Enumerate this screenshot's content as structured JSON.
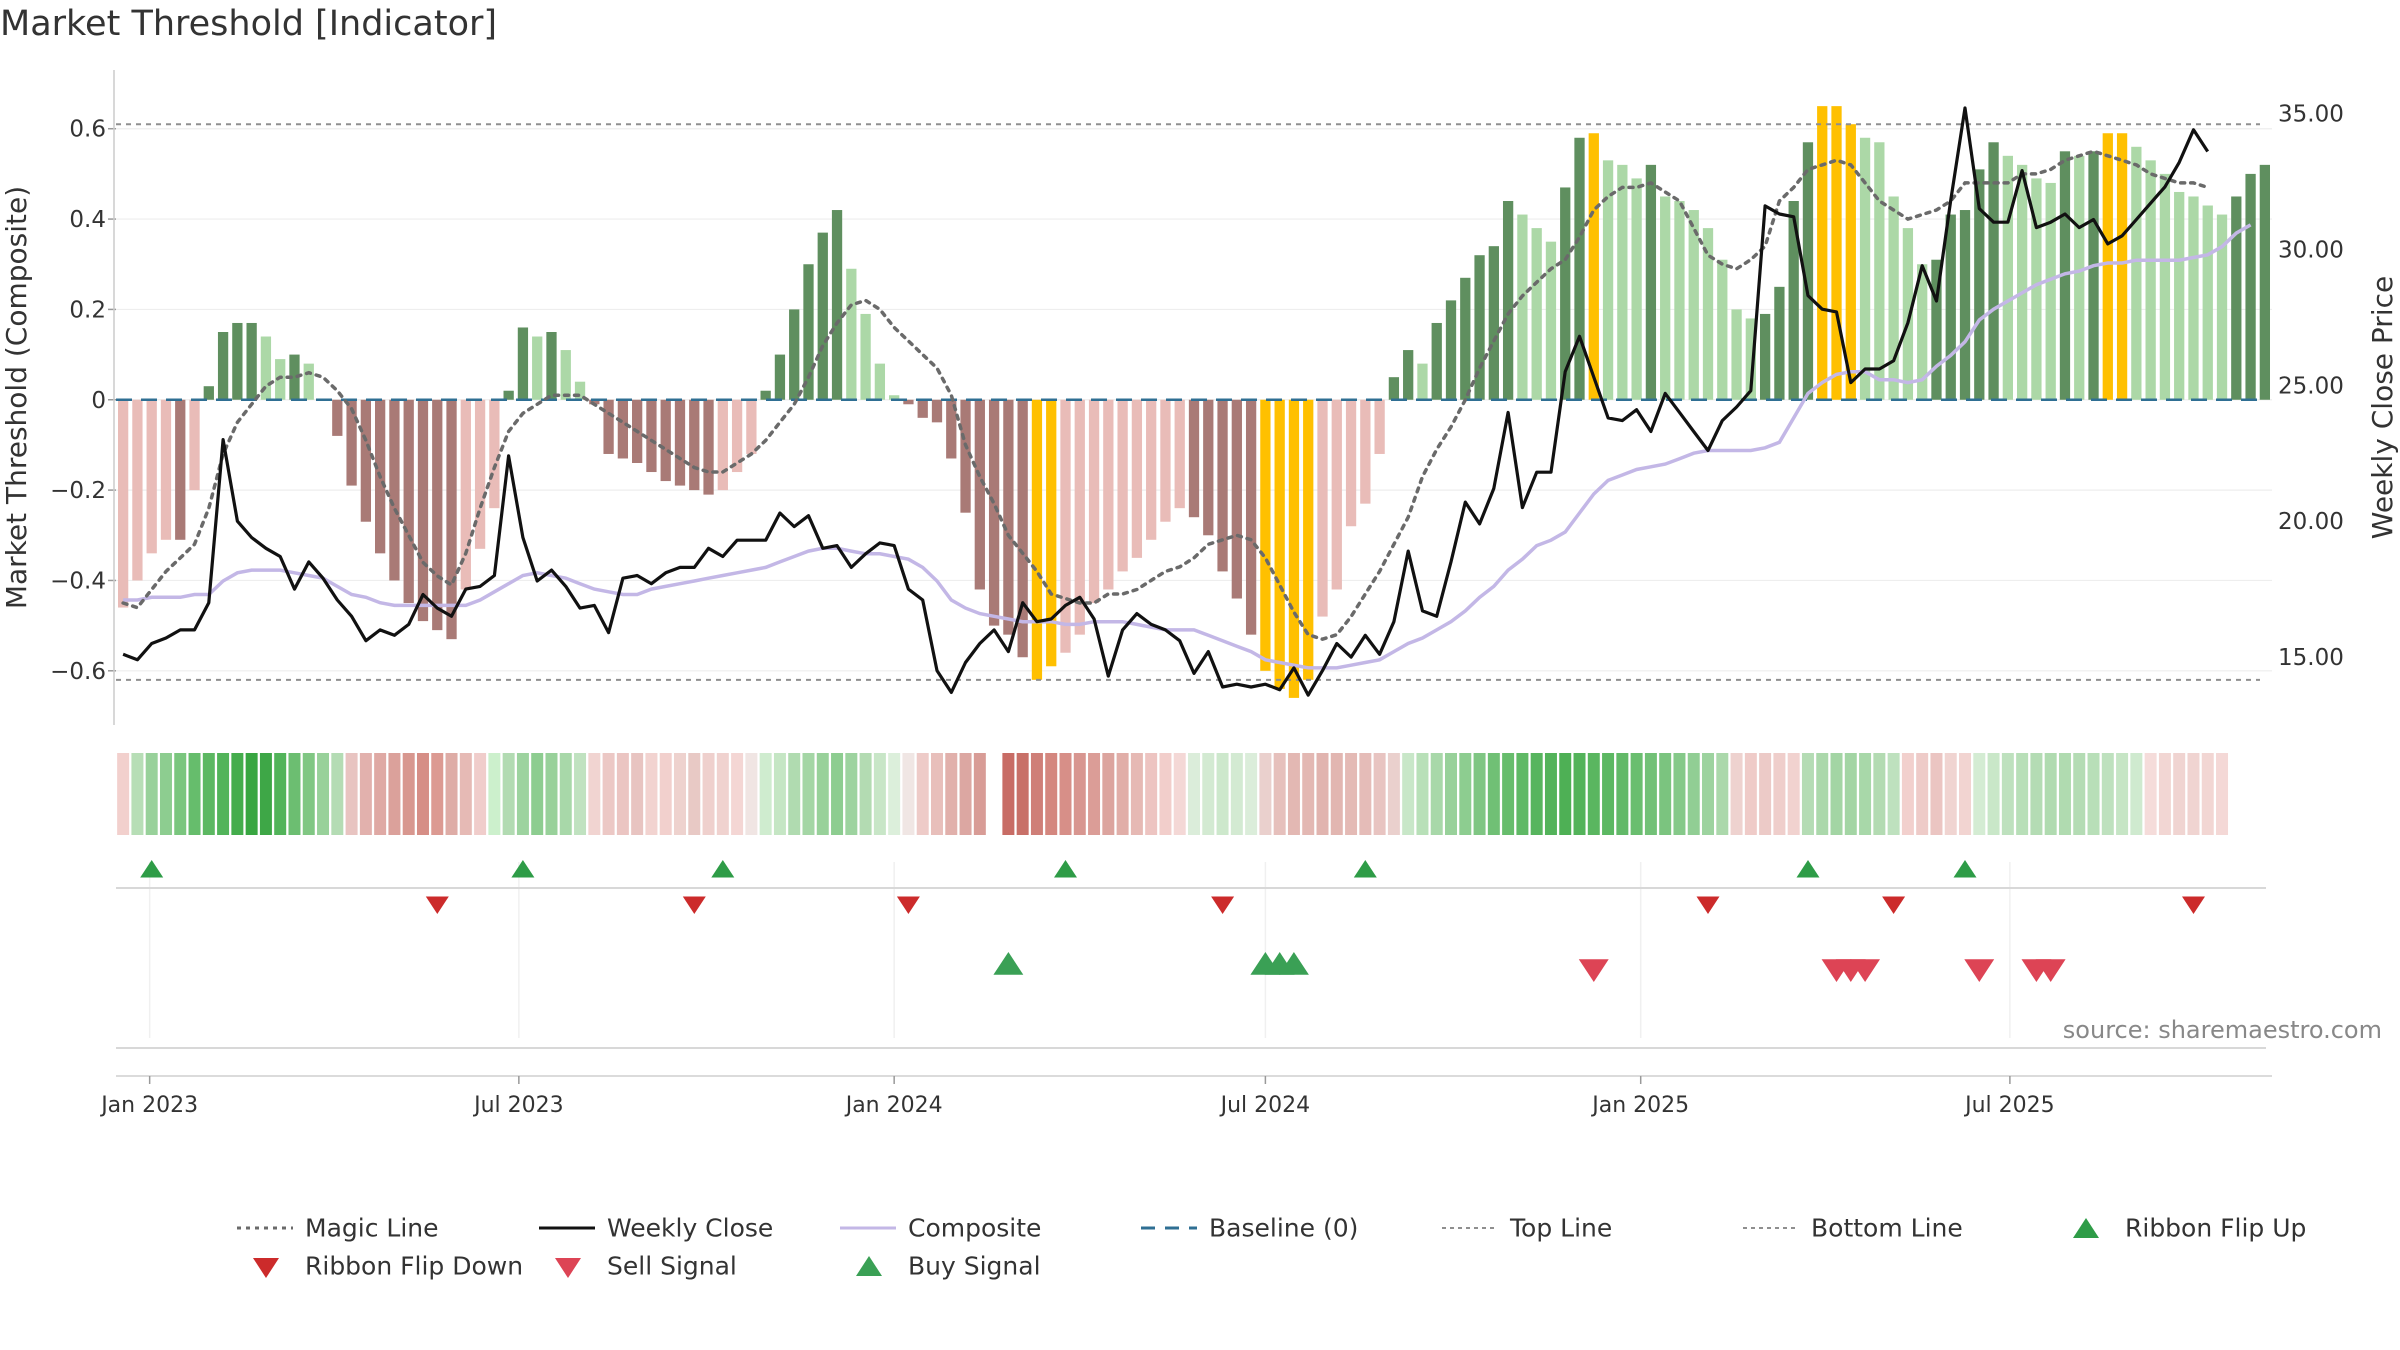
{
  "title": "Market Threshold [Indicator]",
  "source": "source: sharemaestro.com",
  "chart_data": {
    "type": "bar",
    "title": "Market Threshold [Indicator]",
    "ylabel": "Market Threshold (Composite)",
    "y2label": "Weekly Close Price",
    "ylim": [
      -0.72,
      0.73
    ],
    "y2lim": [
      12.5,
      36.6
    ],
    "yticks": [
      0.6,
      0.4,
      0.2,
      0,
      -0.2,
      -0.4,
      -0.6
    ],
    "ytick_labels": [
      "0.6",
      "0.4",
      "0.2",
      "0",
      "−0.2",
      "−0.4",
      "−0.6"
    ],
    "y2ticks": [
      35,
      30,
      25,
      20,
      15
    ],
    "y2tick_labels": [
      "35.00",
      "30.00",
      "25.00",
      "20.00",
      "15.00"
    ],
    "x_start": "2022-12-19",
    "x_step_days": 7,
    "xtick_labels": [
      {
        "label": "Jan 2023",
        "date": "2023-01-01"
      },
      {
        "label": "Jul 2023",
        "date": "2023-07-01"
      },
      {
        "label": "Jan 2024",
        "date": "2024-01-01"
      },
      {
        "label": "Jul 2024",
        "date": "2024-07-01"
      },
      {
        "label": "Jan 2025",
        "date": "2025-01-01"
      },
      {
        "label": "Jul 2025",
        "date": "2025-07-01"
      }
    ],
    "top_line": 0.61,
    "bottom_line": -0.62,
    "composite_bars": [
      -0.46,
      -0.4,
      -0.34,
      -0.31,
      -0.31,
      -0.2,
      0.03,
      0.15,
      0.17,
      0.17,
      0.14,
      0.09,
      0.1,
      0.08,
      0,
      -0.08,
      -0.19,
      -0.27,
      -0.34,
      -0.4,
      -0.45,
      -0.49,
      -0.51,
      -0.53,
      -0.42,
      -0.33,
      -0.24,
      0.02,
      0.16,
      0.14,
      0.15,
      0.11,
      0.04,
      -0.01,
      -0.12,
      -0.13,
      -0.14,
      -0.16,
      -0.18,
      -0.19,
      -0.2,
      -0.21,
      -0.2,
      -0.16,
      -0.12,
      0.02,
      0.1,
      0.2,
      0.3,
      0.37,
      0.42,
      0.29,
      0.19,
      0.08,
      0.01,
      -0.01,
      -0.04,
      -0.05,
      -0.13,
      -0.25,
      -0.42,
      -0.5,
      -0.52,
      -0.57,
      -0.62,
      -0.59,
      -0.56,
      -0.52,
      -0.45,
      -0.42,
      -0.38,
      -0.35,
      -0.31,
      -0.27,
      -0.24,
      -0.26,
      -0.3,
      -0.38,
      -0.44,
      -0.52,
      -0.6,
      -0.64,
      -0.66,
      -0.62,
      -0.48,
      -0.42,
      -0.28,
      -0.23,
      -0.12,
      0.05,
      0.11,
      0.08,
      0.17,
      0.22,
      0.27,
      0.32,
      0.34,
      0.44,
      0.41,
      0.38,
      0.35,
      0.47,
      0.58,
      0.59,
      0.53,
      0.52,
      0.49,
      0.52,
      0.45,
      0.44,
      0.42,
      0.38,
      0.31,
      0.2,
      0.18,
      0.19,
      0.25,
      0.44,
      0.57,
      0.65,
      0.65,
      0.61,
      0.58,
      0.57,
      0.45,
      0.38,
      0.3,
      0.31,
      0.41,
      0.42,
      0.51,
      0.57,
      0.54,
      0.52,
      0.49,
      0.48,
      0.55,
      0.54,
      0.55,
      0.59,
      0.59,
      0.56,
      0.53,
      0.5,
      0.46,
      0.45,
      0.43,
      0.41,
      0.45,
      0.5,
      0.52
    ],
    "weekly_close": [
      15.1,
      14.9,
      15.5,
      15.7,
      16,
      16,
      17,
      23,
      20,
      19.4,
      19,
      18.7,
      17.5,
      18.5,
      17.9,
      17.1,
      16.5,
      15.6,
      16,
      15.8,
      16.2,
      17.3,
      16.8,
      16.5,
      17.5,
      17.6,
      18,
      22.4,
      19.4,
      17.8,
      18.2,
      17.6,
      16.8,
      16.9,
      15.9,
      17.9,
      18,
      17.7,
      18.1,
      18.3,
      18.3,
      19,
      18.7,
      19.3,
      19.3,
      19.3,
      20.3,
      19.8,
      20.2,
      19,
      19.1,
      18.3,
      18.8,
      19.2,
      19.1,
      17.5,
      17.1,
      14.5,
      13.7,
      14.8,
      15.5,
      16,
      15.2,
      17,
      16.3,
      16.4,
      16.9,
      17.2,
      16.4,
      14.3,
      16,
      16.6,
      16.2,
      16,
      15.6,
      14.4,
      15.2,
      13.9,
      14,
      13.9,
      14,
      13.8,
      14.6,
      13.6,
      14.5,
      15.5,
      15,
      15.8,
      15.1,
      16.3,
      18.9,
      16.7,
      16.5,
      18.5,
      20.7,
      19.9,
      21.2,
      24,
      20.5,
      21.8,
      21.8,
      25.5,
      26.8,
      25.3,
      23.8,
      23.7,
      24.1,
      23.3,
      24.7,
      24,
      23.3,
      22.6,
      23.7,
      24.2,
      24.8,
      31.6,
      31.3,
      31.2,
      28.3,
      27.8,
      27.7,
      25.1,
      25.6,
      25.6,
      25.9,
      27.3,
      29.4,
      28.1,
      31.8,
      35.2,
      31.5,
      31,
      31,
      32.9,
      30.8,
      31,
      31.3,
      30.8,
      31.1,
      30.2,
      30.5,
      31.1,
      31.7,
      32.3,
      33.2,
      34.4,
      33.6
    ],
    "magic_line": [
      -0.45,
      -0.46,
      -0.42,
      -0.38,
      -0.35,
      -0.32,
      -0.24,
      -0.12,
      -0.05,
      -0.01,
      0.03,
      0.05,
      0.05,
      0.06,
      0.05,
      0.02,
      -0.02,
      -0.09,
      -0.17,
      -0.24,
      -0.3,
      -0.36,
      -0.39,
      -0.41,
      -0.34,
      -0.24,
      -0.15,
      -0.07,
      -0.03,
      -0.01,
      0.01,
      0.01,
      0.01,
      -0.01,
      -0.03,
      -0.05,
      -0.07,
      -0.09,
      -0.11,
      -0.13,
      -0.15,
      -0.16,
      -0.16,
      -0.14,
      -0.12,
      -0.09,
      -0.05,
      -0.01,
      0.05,
      0.12,
      0.17,
      0.21,
      0.22,
      0.2,
      0.16,
      0.13,
      0.1,
      0.07,
      0.01,
      -0.1,
      -0.17,
      -0.23,
      -0.3,
      -0.34,
      -0.38,
      -0.43,
      -0.44,
      -0.45,
      -0.45,
      -0.43,
      -0.43,
      -0.42,
      -0.4,
      -0.38,
      -0.37,
      -0.35,
      -0.32,
      -0.31,
      -0.3,
      -0.31,
      -0.35,
      -0.41,
      -0.47,
      -0.52,
      -0.53,
      -0.52,
      -0.48,
      -0.43,
      -0.38,
      -0.32,
      -0.26,
      -0.17,
      -0.11,
      -0.06,
      0,
      0.07,
      0.13,
      0.19,
      0.23,
      0.26,
      0.29,
      0.31,
      0.36,
      0.42,
      0.45,
      0.47,
      0.47,
      0.48,
      0.46,
      0.44,
      0.38,
      0.32,
      0.3,
      0.29,
      0.31,
      0.34,
      0.44,
      0.47,
      0.51,
      0.52,
      0.53,
      0.52,
      0.48,
      0.44,
      0.42,
      0.4,
      0.41,
      0.42,
      0.44,
      0.48,
      0.48,
      0.48,
      0.48,
      0.5,
      0.5,
      0.51,
      0.53,
      0.54,
      0.55,
      0.54,
      0.53,
      0.52,
      0.5,
      0.49,
      0.48,
      0.48,
      0.47
    ],
    "composite_line": [
      17.1,
      17.1,
      17.2,
      17.2,
      17.2,
      17.3,
      17.3,
      17.8,
      18.1,
      18.2,
      18.2,
      18.2,
      18.1,
      18,
      17.9,
      17.6,
      17.3,
      17.2,
      17,
      16.9,
      16.9,
      16.9,
      16.9,
      16.9,
      16.9,
      17.1,
      17.4,
      17.7,
      18,
      18.1,
      18,
      17.9,
      17.7,
      17.5,
      17.4,
      17.3,
      17.3,
      17.5,
      17.6,
      17.7,
      17.8,
      17.9,
      18,
      18.1,
      18.2,
      18.3,
      18.5,
      18.7,
      18.9,
      19,
      19,
      18.9,
      18.8,
      18.8,
      18.7,
      18.6,
      18.3,
      17.8,
      17.1,
      16.8,
      16.6,
      16.5,
      16.4,
      16.3,
      16.3,
      16.3,
      16.2,
      16.2,
      16.3,
      16.3,
      16.3,
      16.2,
      16.1,
      16,
      16,
      16,
      15.8,
      15.6,
      15.4,
      15.2,
      14.9,
      14.8,
      14.7,
      14.6,
      14.6,
      14.6,
      14.7,
      14.8,
      14.9,
      15.2,
      15.5,
      15.7,
      16,
      16.3,
      16.7,
      17.2,
      17.6,
      18.2,
      18.6,
      19.1,
      19.3,
      19.6,
      20.3,
      21,
      21.5,
      21.7,
      21.9,
      22,
      22.1,
      22.3,
      22.5,
      22.6,
      22.6,
      22.6,
      22.6,
      22.7,
      22.9,
      23.8,
      24.7,
      25.1,
      25.4,
      25.5,
      25.5,
      25.2,
      25.2,
      25.1,
      25.2,
      25.7,
      26.1,
      26.6,
      27.4,
      27.8,
      28.1,
      28.4,
      28.7,
      28.9,
      29.1,
      29.2,
      29.4,
      29.5,
      29.5,
      29.6,
      29.6,
      29.6,
      29.6,
      29.7,
      29.8,
      30.1,
      30.6,
      30.9
    ],
    "ribbon_colors": [
      "#f2d0cd",
      "#b7deb6",
      "#98d19a",
      "#8dcd90",
      "#7ac67e",
      "#66bd6c",
      "#5cb862",
      "#52b45a",
      "#44ad4c",
      "#38a641",
      "#3ea747",
      "#52b45a",
      "#6cbe71",
      "#80c783",
      "#98d19a",
      "#b4dcb4",
      "#e8c4c1",
      "#e2b1ad",
      "#dfa9a4",
      "#dba19b",
      "#d8978f",
      "#d68e86",
      "#dc9a92",
      "#deaca6",
      "#e6bab5",
      "#f0cdcb",
      "#ccf0cc",
      "#b2dbb2",
      "#9dd39f",
      "#8dcd90",
      "#98d19a",
      "#a8d8a9",
      "#c0e2c0",
      "#f1d4d1",
      "#ecc8c5",
      "#ebc5c2",
      "#e8c4c1",
      "#f2d3d0",
      "#f2d0cd",
      "#eed2ce",
      "#e8c9c5",
      "#efd0cd",
      "#f0d2cf",
      "#f4d6d4",
      "#f0e5e3",
      "#cfeccf",
      "#c5e6c4",
      "#b0dbb0",
      "#a4d6a5",
      "#98d19a",
      "#8dcd90",
      "#9dd39f",
      "#b3dbb2",
      "#c8e6c7",
      "#dcefdb",
      "#f0e6e4",
      "#eecbc8",
      "#e8bfbb",
      "#e1b0ab",
      "#dca7a2",
      "#d89c96",
      "#fff",
      "#c86c65",
      "#c87068",
      "#cf7f78",
      "#d4877f",
      "#d78f88",
      "#d89690",
      "#db9d97",
      "#dca49e",
      "#e1aea8",
      "#e6b9b4",
      "#edc4c1",
      "#f2cecb",
      "#f4d8d6",
      "#dbedda",
      "#d3ead2",
      "#cde8cc",
      "#d3ead2",
      "#dbedda",
      "#ead0cd",
      "#e6c0bc",
      "#e3b8b3",
      "#e3b8b3",
      "#e1b4af",
      "#e2b6b1",
      "#e4bab5",
      "#e5bcb8",
      "#e8c4c1",
      "#ead0cd",
      "#c8e7c8",
      "#b8e0b8",
      "#a8d8a9",
      "#98d19a",
      "#8dcd90",
      "#7fc683",
      "#70c075",
      "#67bd6c",
      "#5fb965",
      "#57b55e",
      "#53b35a",
      "#4eb055",
      "#53b35a",
      "#5ab660",
      "#5cb862",
      "#62b968",
      "#6abe6f",
      "#72c177",
      "#7bc47f",
      "#85c989",
      "#91ce94",
      "#9dd39f",
      "#abd8ab",
      "#eed2cf",
      "#efcbc8",
      "#eccac7",
      "#efcecb",
      "#f1d2cf",
      "#b4dcb4",
      "#abd8ab",
      "#a3d5a4",
      "#a3d5a4",
      "#a8d8a9",
      "#b3dbb2",
      "#bee1be",
      "#f2d0cd",
      "#eecbc8",
      "#ebc5c2",
      "#f0d4d1",
      "#f2d4d1",
      "#d4ecd3",
      "#c9e7c8",
      "#bee1be",
      "#b8dfb8",
      "#b4dcb4",
      "#b0dbb0",
      "#b0dbb0",
      "#b4dcb4",
      "#b8dfb8",
      "#bee1be",
      "#c6e5c5",
      "#cfeacf",
      "#f5dcda",
      "#f2d6d3",
      "#f0d4d1",
      "#f0d4d1",
      "#f2d6d3",
      "#f4d8d6"
    ],
    "signals": {
      "ribbon_flip_up": [
        "2023-01-02",
        "2023-07-03",
        "2023-10-09",
        "2024-03-25",
        "2024-08-19",
        "2025-03-24",
        "2025-06-09"
      ],
      "ribbon_flip_down": [
        "2023-05-22",
        "2023-09-25",
        "2024-01-08",
        "2024-06-10",
        "2025-02-03",
        "2025-05-05",
        "2025-09-29"
      ],
      "buy_signal": [
        "2024-02-26",
        "2024-07-01",
        "2024-07-08",
        "2024-07-15"
      ],
      "sell_signal": [
        "2024-12-09",
        "2025-04-07",
        "2025-04-14",
        "2025-04-21",
        "2025-06-16",
        "2025-07-14",
        "2025-07-21"
      ]
    },
    "legend": [
      {
        "label": "Magic Line",
        "kind": "dotted",
        "color": "#6a6a6a"
      },
      {
        "label": "Weekly Close",
        "kind": "solid",
        "color": "#111111"
      },
      {
        "label": "Composite",
        "kind": "solid",
        "color": "#c3b7e6"
      },
      {
        "label": "Baseline (0)",
        "kind": "dashed",
        "color": "#2f6f93"
      },
      {
        "label": "Top Line",
        "kind": "dotted-thin",
        "color": "#8f8f8f"
      },
      {
        "label": "Bottom Line",
        "kind": "dotted-thin",
        "color": "#8f8f8f"
      },
      {
        "label": "Ribbon Flip Up",
        "kind": "tri-up",
        "color": "#2e9c47"
      },
      {
        "label": "Ribbon Flip Down",
        "kind": "tri-down",
        "color": "#cc2b2b"
      },
      {
        "label": "Sell Signal",
        "kind": "tri-down",
        "color": "#dd4455"
      },
      {
        "label": "Buy Signal",
        "kind": "tri-up",
        "color": "#3aa055"
      }
    ]
  },
  "colors": {
    "neg_dark": "#a97a76",
    "neg_light": "#e9bcb8",
    "pos_dark": "#5f8f5f",
    "pos_light": "#acd8a7",
    "extreme": "#ffc000",
    "grid": "#eeeeee"
  }
}
